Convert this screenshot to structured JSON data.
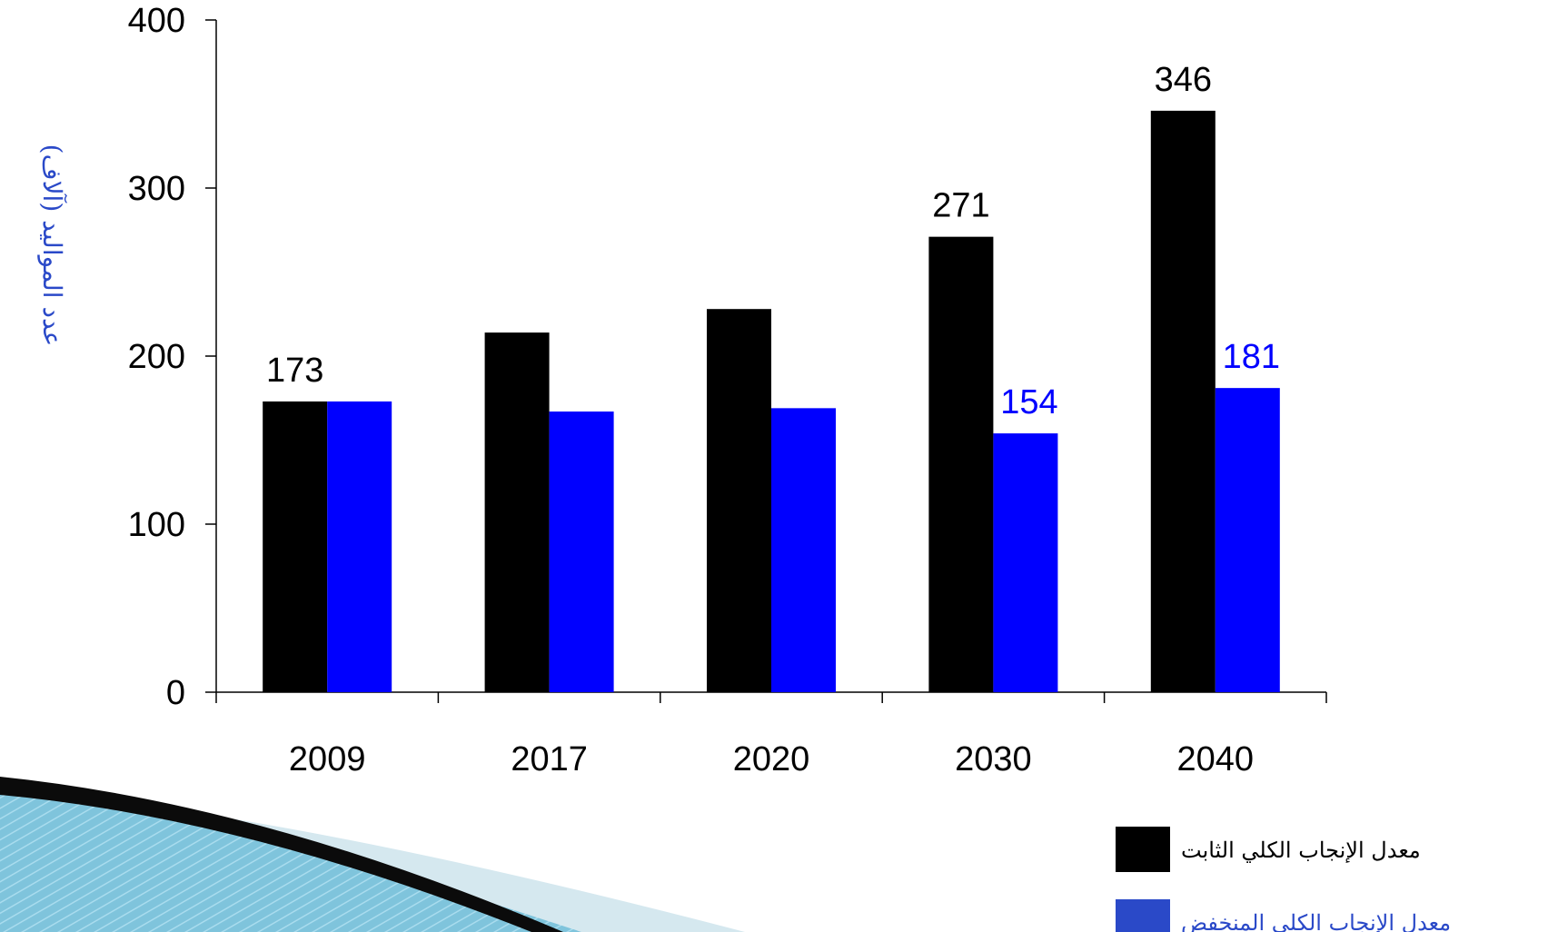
{
  "chart_data": {
    "type": "bar",
    "categories": [
      "2009",
      "2017",
      "2020",
      "2030",
      "2040"
    ],
    "series": [
      {
        "name": "معدل الإنجاب الكلي الثابت",
        "color": "#000000",
        "values": [
          173,
          214,
          228,
          271,
          346
        ]
      },
      {
        "name": "معدل الإنجاب الكلي المنخفض",
        "color": "#0000ff",
        "values": [
          173,
          167,
          169,
          154,
          181
        ]
      }
    ],
    "data_labels": [
      {
        "series": 0,
        "index": 0,
        "text": "173"
      },
      {
        "series": 0,
        "index": 3,
        "text": "271"
      },
      {
        "series": 0,
        "index": 4,
        "text": "346"
      },
      {
        "series": 1,
        "index": 3,
        "text": "154"
      },
      {
        "series": 1,
        "index": 4,
        "text": "181"
      }
    ],
    "title": "",
    "xlabel": "",
    "ylabel": "عدد المواليد (آلاف)",
    "ylabel_color": "#2a49c8",
    "ylim": [
      0,
      400
    ],
    "yticks": [
      0,
      100,
      200,
      300,
      400
    ],
    "legend_position": "bottom-right",
    "legend_text_colors": [
      "#000000",
      "#2a49c8"
    ],
    "grid": false
  }
}
